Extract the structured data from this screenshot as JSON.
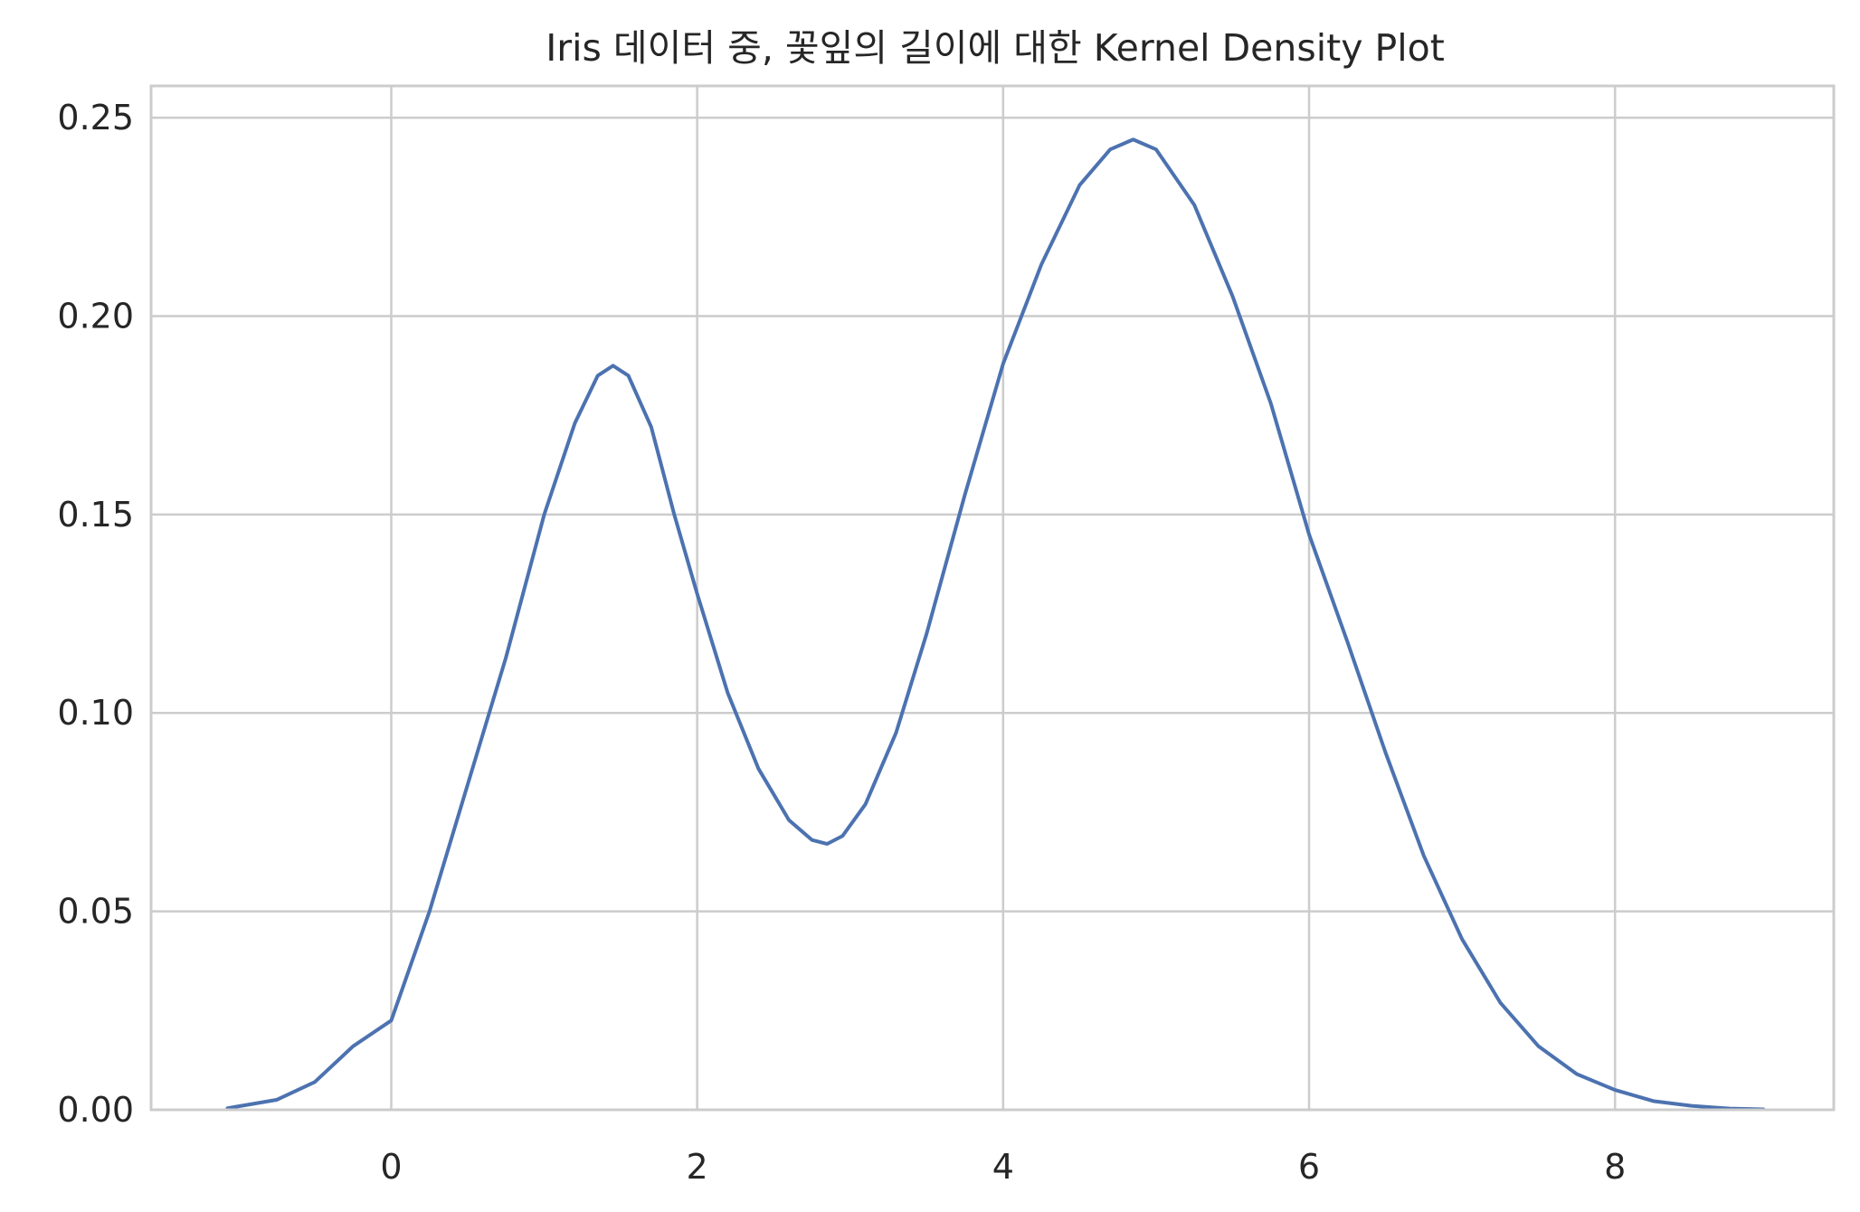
{
  "chart_data": {
    "type": "line",
    "title": "Iris 데이터 중, 꽃잎의 길이에 대한 Kernel Density Plot",
    "xlabel": "",
    "ylabel": "",
    "xlim": [
      -1.57,
      9.43
    ],
    "ylim": [
      0,
      0.258
    ],
    "xticks": [
      0,
      2,
      4,
      6,
      8
    ],
    "xtick_labels": [
      "0",
      "2",
      "4",
      "6",
      "8"
    ],
    "yticks": [
      0,
      0.05,
      0.1,
      0.15,
      0.2,
      0.25
    ],
    "ytick_labels": [
      "0.00",
      "0.05",
      "0.10",
      "0.15",
      "0.20",
      "0.25"
    ],
    "grid": true,
    "colors": {
      "line": "#4c72b0",
      "grid": "#cccccc",
      "spine": "#cccccc",
      "text": "#262626"
    },
    "series": [
      {
        "x": [
          -1.07,
          -0.75,
          -0.5,
          -0.25,
          0.0,
          0.25,
          0.5,
          0.75,
          1.0,
          1.2,
          1.35,
          1.45,
          1.55,
          1.7,
          1.85,
          2.0,
          2.2,
          2.4,
          2.6,
          2.75,
          2.85,
          2.95,
          3.1,
          3.3,
          3.5,
          3.75,
          4.0,
          4.25,
          4.5,
          4.7,
          4.85,
          5.0,
          5.25,
          5.5,
          5.75,
          6.0,
          6.25,
          6.5,
          6.75,
          7.0,
          7.25,
          7.5,
          7.75,
          8.0,
          8.25,
          8.5,
          8.75,
          8.97
        ],
        "y": [
          0.0004,
          0.0025,
          0.007,
          0.016,
          0.0225,
          0.05,
          0.082,
          0.114,
          0.15,
          0.173,
          0.185,
          0.1875,
          0.185,
          0.172,
          0.15,
          0.13,
          0.105,
          0.086,
          0.073,
          0.068,
          0.067,
          0.069,
          0.077,
          0.095,
          0.12,
          0.155,
          0.188,
          0.213,
          0.233,
          0.242,
          0.2445,
          0.242,
          0.228,
          0.205,
          0.178,
          0.145,
          0.118,
          0.09,
          0.064,
          0.043,
          0.027,
          0.016,
          0.009,
          0.005,
          0.0022,
          0.001,
          0.0003,
          0.0001
        ]
      }
    ]
  }
}
